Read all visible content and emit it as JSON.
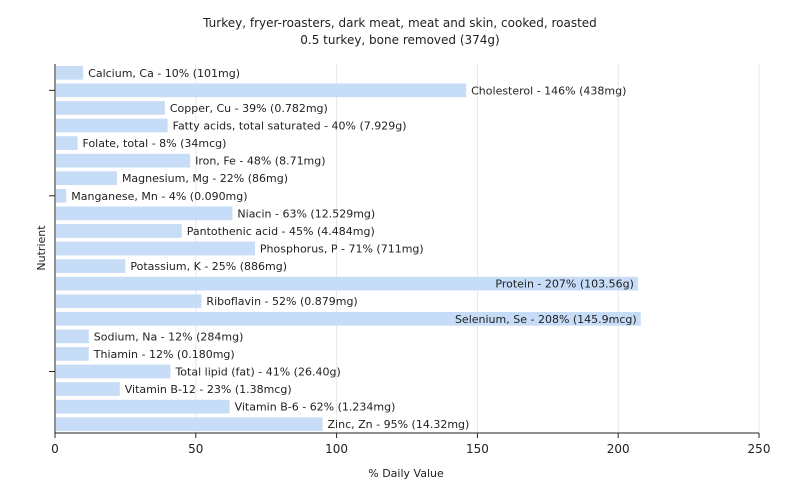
{
  "chart_data": {
    "type": "bar",
    "orientation": "horizontal",
    "title": "Turkey, fryer-roasters, dark meat, meat and skin, cooked, roasted",
    "subtitle": "0.5 turkey, bone removed (374g)",
    "xlabel": "% Daily Value",
    "ylabel": "Nutrient",
    "xlim": [
      0,
      250
    ],
    "xticks": [
      0,
      50,
      100,
      150,
      200,
      250
    ],
    "grid": true,
    "bar_color": "#c6dcf7",
    "categories": [
      "Calcium, Ca",
      "Cholesterol",
      "Copper, Cu",
      "Fatty acids, total saturated",
      "Folate, total",
      "Iron, Fe",
      "Magnesium, Mg",
      "Manganese, Mn",
      "Niacin",
      "Pantothenic acid",
      "Phosphorus, P",
      "Potassium, K",
      "Protein",
      "Riboflavin",
      "Selenium, Se",
      "Sodium, Na",
      "Thiamin",
      "Total lipid (fat)",
      "Vitamin B-12",
      "Vitamin B-6",
      "Zinc, Zn"
    ],
    "values": [
      10,
      146,
      39,
      40,
      8,
      48,
      22,
      4,
      63,
      45,
      71,
      25,
      207,
      52,
      208,
      12,
      12,
      41,
      23,
      62,
      95
    ],
    "labels": [
      "Calcium, Ca - 10% (101mg)",
      "Cholesterol - 146% (438mg)",
      "Copper, Cu - 39% (0.782mg)",
      "Fatty acids, total saturated - 40% (7.929g)",
      "Folate, total - 8% (34mcg)",
      "Iron, Fe - 48% (8.71mg)",
      "Magnesium, Mg - 22% (86mg)",
      "Manganese, Mn - 4% (0.090mg)",
      "Niacin - 63% (12.529mg)",
      "Pantothenic acid - 45% (4.484mg)",
      "Phosphorus, P - 71% (711mg)",
      "Potassium, K - 25% (886mg)",
      "Protein - 207% (103.56g)",
      "Riboflavin - 52% (0.879mg)",
      "Selenium, Se - 208% (145.9mcg)",
      "Sodium, Na - 12% (284mg)",
      "Thiamin - 12% (0.180mg)",
      "Total lipid (fat) - 41% (26.40g)",
      "Vitamin B-12 - 23% (1.38mcg)",
      "Vitamin B-6 - 62% (1.234mg)",
      "Zinc, Zn - 95% (14.32mg)"
    ]
  }
}
